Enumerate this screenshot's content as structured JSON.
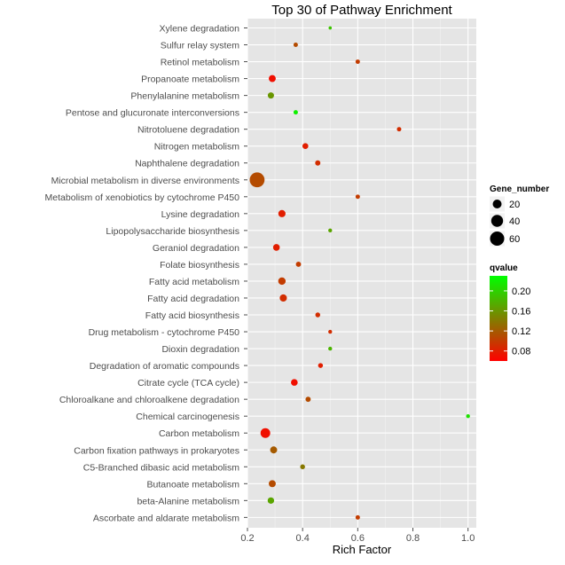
{
  "chart_data": {
    "type": "scatter",
    "title": "Top 30 of Pathway Enrichment",
    "xlabel": "Rich Factor",
    "ylabel": "",
    "xlim": [
      0.2,
      1.03
    ],
    "xticks": [
      0.2,
      0.4,
      0.6,
      0.8,
      1.0
    ],
    "xtick_labels": [
      "0.2",
      "0.4",
      "0.6",
      "0.8",
      "1.0"
    ],
    "grid": true,
    "legend_position": "right",
    "size_legend": {
      "title": "Gene_number",
      "values": [
        20,
        40,
        60
      ],
      "labels": [
        "20",
        "40",
        "60"
      ]
    },
    "color_legend": {
      "title": "qvalue",
      "range": [
        0.06,
        0.23
      ],
      "ticks": [
        0.08,
        0.12,
        0.16,
        0.2
      ],
      "tick_labels": [
        "0.08",
        "0.12",
        "0.16",
        "0.20"
      ],
      "low_color": "#ff0000",
      "high_color": "#00ff00"
    },
    "points": [
      {
        "pathway": "Xylene degradation",
        "rich_factor": 0.5,
        "gene_number": 1,
        "qvalue": 0.19
      },
      {
        "pathway": "Sulfur relay system",
        "rich_factor": 0.375,
        "gene_number": 3,
        "qvalue": 0.11
      },
      {
        "pathway": "Retinol metabolism",
        "rich_factor": 0.6,
        "gene_number": 3,
        "qvalue": 0.1
      },
      {
        "pathway": "Propanoate metabolism",
        "rich_factor": 0.29,
        "gene_number": 11,
        "qvalue": 0.07
      },
      {
        "pathway": "Phenylalanine metabolism",
        "rich_factor": 0.285,
        "gene_number": 8,
        "qvalue": 0.16
      },
      {
        "pathway": "Pentose and glucuronate interconversions",
        "rich_factor": 0.375,
        "gene_number": 3,
        "qvalue": 0.22
      },
      {
        "pathway": "Nitrotoluene degradation",
        "rich_factor": 0.75,
        "gene_number": 3,
        "qvalue": 0.09
      },
      {
        "pathway": "Nitrogen metabolism",
        "rich_factor": 0.41,
        "gene_number": 7,
        "qvalue": 0.08
      },
      {
        "pathway": "Naphthalene degradation",
        "rich_factor": 0.455,
        "gene_number": 5,
        "qvalue": 0.09
      },
      {
        "pathway": "Microbial metabolism in diverse environments",
        "rich_factor": 0.235,
        "gene_number": 67,
        "qvalue": 0.11
      },
      {
        "pathway": "Metabolism of xenobiotics by cytochrome P450",
        "rich_factor": 0.6,
        "gene_number": 3,
        "qvalue": 0.1
      },
      {
        "pathway": "Lysine degradation",
        "rich_factor": 0.325,
        "gene_number": 12,
        "qvalue": 0.08
      },
      {
        "pathway": "Lipopolysaccharide biosynthesis",
        "rich_factor": 0.5,
        "gene_number": 2,
        "qvalue": 0.17
      },
      {
        "pathway": "Geraniol degradation",
        "rich_factor": 0.305,
        "gene_number": 10,
        "qvalue": 0.08
      },
      {
        "pathway": "Folate biosynthesis",
        "rich_factor": 0.385,
        "gene_number": 5,
        "qvalue": 0.1
      },
      {
        "pathway": "Fatty acid metabolism",
        "rich_factor": 0.325,
        "gene_number": 13,
        "qvalue": 0.1
      },
      {
        "pathway": "Fatty acid degradation",
        "rich_factor": 0.33,
        "gene_number": 12,
        "qvalue": 0.09
      },
      {
        "pathway": "Fatty acid biosynthesis",
        "rich_factor": 0.455,
        "gene_number": 4,
        "qvalue": 0.09
      },
      {
        "pathway": "Drug metabolism - cytochrome P450",
        "rich_factor": 0.5,
        "gene_number": 2,
        "qvalue": 0.09
      },
      {
        "pathway": "Dioxin degradation",
        "rich_factor": 0.5,
        "gene_number": 2,
        "qvalue": 0.18
      },
      {
        "pathway": "Degradation of aromatic compounds",
        "rich_factor": 0.465,
        "gene_number": 4,
        "qvalue": 0.08
      },
      {
        "pathway": "Citrate cycle (TCA cycle)",
        "rich_factor": 0.37,
        "gene_number": 10,
        "qvalue": 0.07
      },
      {
        "pathway": "Chloroalkane and chloroalkene degradation",
        "rich_factor": 0.42,
        "gene_number": 5,
        "qvalue": 0.11
      },
      {
        "pathway": "Chemical carcinogenesis",
        "rich_factor": 1.0,
        "gene_number": 2,
        "qvalue": 0.21
      },
      {
        "pathway": "Carbon metabolism",
        "rich_factor": 0.265,
        "gene_number": 25,
        "qvalue": 0.07
      },
      {
        "pathway": "Carbon fixation pathways in prokaryotes",
        "rich_factor": 0.295,
        "gene_number": 11,
        "qvalue": 0.12
      },
      {
        "pathway": "C5-Branched dibasic acid metabolism",
        "rich_factor": 0.4,
        "gene_number": 4,
        "qvalue": 0.14
      },
      {
        "pathway": "Butanoate metabolism",
        "rich_factor": 0.29,
        "gene_number": 11,
        "qvalue": 0.11
      },
      {
        "pathway": "beta-Alanine metabolism",
        "rich_factor": 0.285,
        "gene_number": 9,
        "qvalue": 0.17
      },
      {
        "pathway": "Ascorbate and aldarate metabolism",
        "rich_factor": 0.6,
        "gene_number": 3,
        "qvalue": 0.1
      }
    ]
  }
}
